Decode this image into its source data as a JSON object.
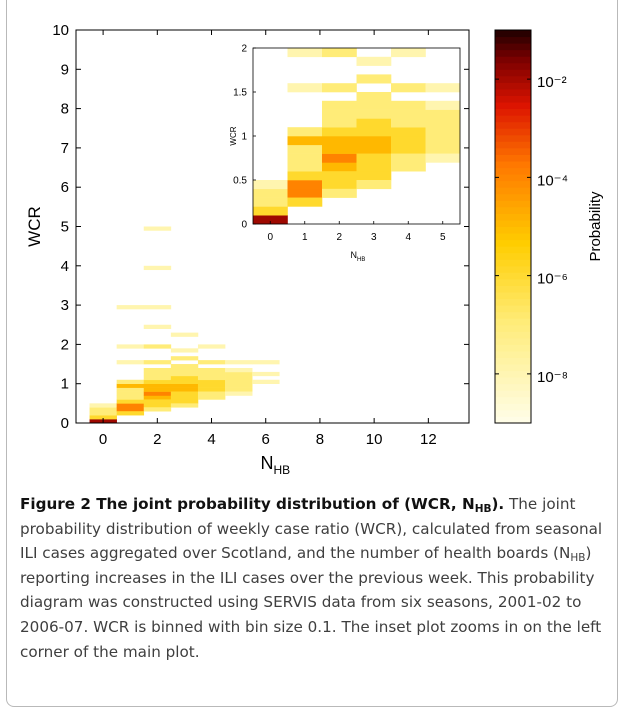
{
  "figure": {
    "caption_title_prefix": "Figure 2 The joint probability distribution of (WCR, N",
    "caption_title_sub": "HB",
    "caption_title_suffix": ").",
    "caption_part1": " The joint probability distribution of weekly case ratio (WCR), calculated from seasonal ILI cases aggregated over Scotland, and the number of health boards (N",
    "caption_sub": "HB",
    "caption_part2": ") reporting increases in the ILI cases over the previous week. This probability diagram was constructed using SERVIS data from six seasons, 2001-02 to 2006-07. WCR is binned with bin size 0.1. The inset plot zooms in on the left corner of the main plot."
  },
  "chart_data": [
    {
      "type": "heatmap",
      "panel": "main",
      "xlabel": "N",
      "xlabel_sub": "HB",
      "ylabel": "WCR",
      "xlim": [
        -1,
        13.5
      ],
      "ylim": [
        0,
        10
      ],
      "xticks": [
        0,
        2,
        4,
        6,
        8,
        10,
        12
      ],
      "yticks": [
        0,
        1,
        2,
        3,
        4,
        5,
        6,
        7,
        8,
        9,
        10
      ],
      "bin_width_wcr": 0.1,
      "cells": [
        [
          0,
          0.0,
          0.01
        ],
        [
          0,
          0.1,
          1e-06
        ],
        [
          0,
          0.2,
          1e-07
        ],
        [
          0,
          0.3,
          1e-07
        ],
        [
          0,
          0.4,
          1e-08
        ],
        [
          1,
          0.3,
          0.0001
        ],
        [
          1,
          0.4,
          0.0001
        ],
        [
          1,
          0.5,
          1e-06
        ],
        [
          1,
          0.2,
          1e-06
        ],
        [
          1,
          0.6,
          1e-07
        ],
        [
          1,
          0.7,
          1e-07
        ],
        [
          1,
          0.8,
          1e-07
        ],
        [
          1,
          0.9,
          1e-05
        ],
        [
          1,
          1.0,
          1e-07
        ],
        [
          1,
          1.9,
          1e-08
        ],
        [
          1,
          2.9,
          1e-08
        ],
        [
          1,
          1.5,
          1e-08
        ],
        [
          2,
          0.6,
          1e-05
        ],
        [
          2,
          0.7,
          0.0001
        ],
        [
          2,
          0.8,
          1e-05
        ],
        [
          2,
          0.9,
          1e-05
        ],
        [
          2,
          0.5,
          1e-06
        ],
        [
          2,
          0.4,
          1e-06
        ],
        [
          2,
          0.3,
          1e-07
        ],
        [
          2,
          1.0,
          1e-06
        ],
        [
          2,
          1.1,
          1e-07
        ],
        [
          2,
          1.2,
          1e-07
        ],
        [
          2,
          1.3,
          1e-07
        ],
        [
          2,
          1.5,
          1e-07
        ],
        [
          2,
          1.9,
          1e-07
        ],
        [
          2,
          2.4,
          1e-08
        ],
        [
          2,
          2.9,
          1e-08
        ],
        [
          2,
          3.9,
          1e-08
        ],
        [
          2,
          4.9,
          1e-08
        ],
        [
          3,
          0.9,
          1e-05
        ],
        [
          3,
          0.8,
          1e-05
        ],
        [
          3,
          0.7,
          1e-06
        ],
        [
          3,
          0.6,
          1e-06
        ],
        [
          3,
          0.5,
          1e-06
        ],
        [
          3,
          0.4,
          1e-07
        ],
        [
          3,
          1.0,
          1e-06
        ],
        [
          3,
          1.1,
          1e-06
        ],
        [
          3,
          1.2,
          1e-07
        ],
        [
          3,
          1.3,
          1e-07
        ],
        [
          3,
          1.4,
          1e-07
        ],
        [
          3,
          1.6,
          1e-07
        ],
        [
          3,
          1.8,
          1e-08
        ],
        [
          3,
          2.2,
          1e-08
        ],
        [
          4,
          0.9,
          1e-06
        ],
        [
          4,
          0.8,
          1e-06
        ],
        [
          4,
          0.7,
          1e-07
        ],
        [
          4,
          0.6,
          1e-07
        ],
        [
          4,
          1.0,
          1e-06
        ],
        [
          4,
          1.1,
          1e-07
        ],
        [
          4,
          1.2,
          1e-07
        ],
        [
          4,
          1.3,
          1e-07
        ],
        [
          4,
          1.5,
          1e-07
        ],
        [
          4,
          1.9,
          1e-08
        ],
        [
          5,
          1.0,
          1e-07
        ],
        [
          5,
          1.1,
          1e-07
        ],
        [
          5,
          1.2,
          1e-07
        ],
        [
          5,
          0.9,
          1e-07
        ],
        [
          5,
          0.8,
          1e-07
        ],
        [
          5,
          0.7,
          1e-08
        ],
        [
          5,
          1.3,
          1e-08
        ],
        [
          5,
          1.5,
          1e-08
        ],
        [
          6,
          1.0,
          1e-08
        ],
        [
          6,
          1.2,
          1e-08
        ],
        [
          6,
          1.5,
          1e-08
        ]
      ]
    },
    {
      "type": "heatmap",
      "panel": "inset",
      "xlabel": "N",
      "xlabel_sub": "HB",
      "ylabel": "WCR",
      "xlim": [
        -0.5,
        5.5
      ],
      "ylim": [
        0,
        2
      ],
      "xticks": [
        0,
        1,
        2,
        3,
        4,
        5
      ],
      "yticks": [
        0,
        0.5,
        1,
        1.5,
        2
      ]
    },
    {
      "type": "colorbar",
      "label": "Probability",
      "scale": "log",
      "range": [
        1e-09,
        0.1
      ],
      "tick_labels": [
        "10⁻²",
        "10⁻⁴",
        "10⁻⁶",
        "10⁻⁸"
      ],
      "colormap": "hot"
    }
  ],
  "colors": {
    "low": "#fffde6",
    "mid": "#ffd200",
    "high": "#e60000",
    "max": "#1a0000"
  }
}
